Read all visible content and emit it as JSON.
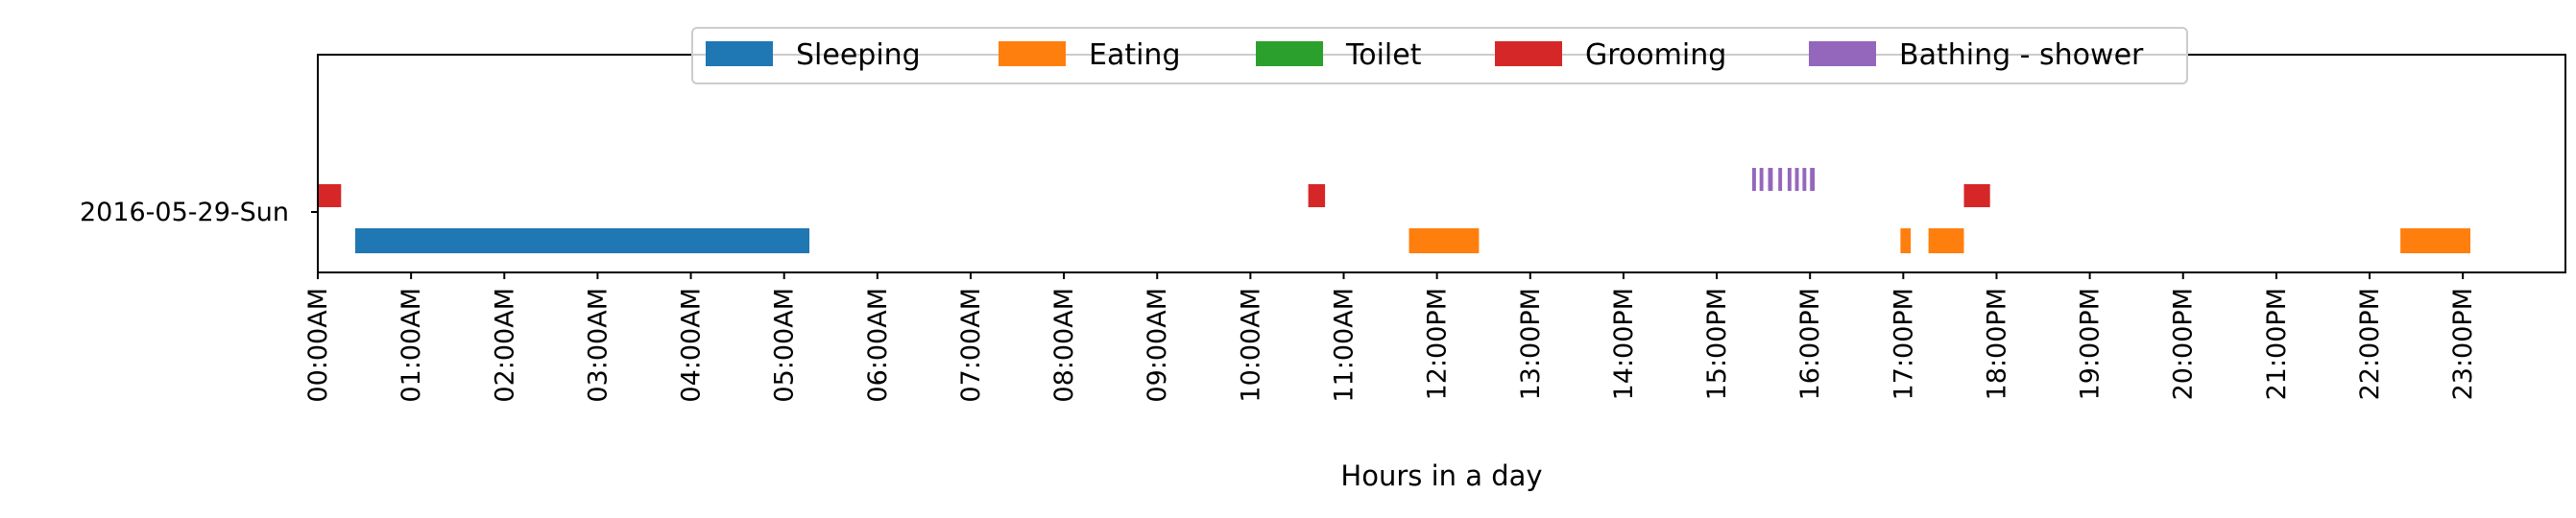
{
  "chart_data": {
    "type": "timeline",
    "xlabel": "Hours in a day",
    "ylabel": "",
    "xlim": [
      0,
      24.1
    ],
    "x_ticks": [
      {
        "value": 0,
        "label": "00:00AM"
      },
      {
        "value": 1,
        "label": "01:00AM"
      },
      {
        "value": 2,
        "label": "02:00AM"
      },
      {
        "value": 3,
        "label": "03:00AM"
      },
      {
        "value": 4,
        "label": "04:00AM"
      },
      {
        "value": 5,
        "label": "05:00AM"
      },
      {
        "value": 6,
        "label": "06:00AM"
      },
      {
        "value": 7,
        "label": "07:00AM"
      },
      {
        "value": 8,
        "label": "08:00AM"
      },
      {
        "value": 9,
        "label": "09:00AM"
      },
      {
        "value": 10,
        "label": "10:00AM"
      },
      {
        "value": 11,
        "label": "11:00AM"
      },
      {
        "value": 12,
        "label": "12:00PM"
      },
      {
        "value": 13,
        "label": "13:00PM"
      },
      {
        "value": 14,
        "label": "14:00PM"
      },
      {
        "value": 15,
        "label": "15:00PM"
      },
      {
        "value": 16,
        "label": "16:00PM"
      },
      {
        "value": 17,
        "label": "17:00PM"
      },
      {
        "value": 18,
        "label": "18:00PM"
      },
      {
        "value": 19,
        "label": "19:00PM"
      },
      {
        "value": 20,
        "label": "20:00PM"
      },
      {
        "value": 21,
        "label": "21:00PM"
      },
      {
        "value": 22,
        "label": "22:00PM"
      },
      {
        "value": 23,
        "label": "23:00PM"
      }
    ],
    "categories": [
      "2016-05-29-Sun"
    ],
    "legend_placement": "top-center",
    "grid": false,
    "series": [
      {
        "name": "Sleeping",
        "color": "#1f77b4",
        "lane": "low",
        "segments": [
          [
            0.4,
            5.27
          ]
        ]
      },
      {
        "name": "Eating",
        "color": "#ff7f0e",
        "lane": "low",
        "segments": [
          [
            11.7,
            12.45
          ],
          [
            16.97,
            17.08
          ],
          [
            17.27,
            17.65
          ],
          [
            22.33,
            23.08
          ]
        ]
      },
      {
        "name": "Toilet",
        "color": "#2ca02c",
        "lane": "mid",
        "segments": []
      },
      {
        "name": "Grooming",
        "color": "#d62728",
        "lane": "mid",
        "segments": [
          [
            0.0,
            0.25
          ],
          [
            10.62,
            10.8
          ],
          [
            17.65,
            17.93
          ]
        ]
      },
      {
        "name": "Bathing - shower",
        "color": "#9467bd",
        "lane": "high",
        "segments": [
          [
            15.38,
            15.42
          ],
          [
            15.46,
            15.5
          ],
          [
            15.55,
            15.6
          ],
          [
            15.66,
            15.7
          ],
          [
            15.76,
            15.8
          ],
          [
            15.84,
            15.88
          ],
          [
            15.92,
            15.96
          ],
          [
            16.0,
            16.05
          ]
        ]
      }
    ]
  }
}
